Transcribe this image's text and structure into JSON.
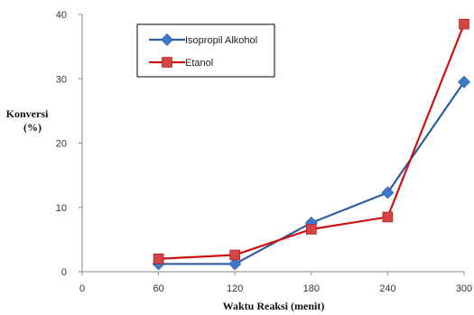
{
  "chart_data": {
    "type": "line",
    "title": "",
    "xlabel": "Waktu Reaksi (menit)",
    "ylabel_line1": "Konversi",
    "ylabel_line2": "(%)",
    "x": [
      60,
      120,
      180,
      240,
      300
    ],
    "x_ticks": [
      0,
      60,
      120,
      180,
      240,
      300
    ],
    "xlim": [
      0,
      300
    ],
    "y_ticks": [
      0,
      10,
      20,
      30,
      40
    ],
    "ylim": [
      0,
      40
    ],
    "grid": false,
    "legend_position": "top-left",
    "series": [
      {
        "name": "Isopropil Alkohol",
        "values": [
          1.2,
          1.2,
          7.6,
          12.3,
          29.5
        ],
        "color": "#2E5C9E",
        "marker": "diamond",
        "marker_color": "#3E78CC"
      },
      {
        "name": "Etanol",
        "values": [
          2.0,
          2.6,
          6.6,
          8.5,
          38.5
        ],
        "color": "#CC1111",
        "marker": "square",
        "marker_color": "#D64545"
      }
    ]
  }
}
